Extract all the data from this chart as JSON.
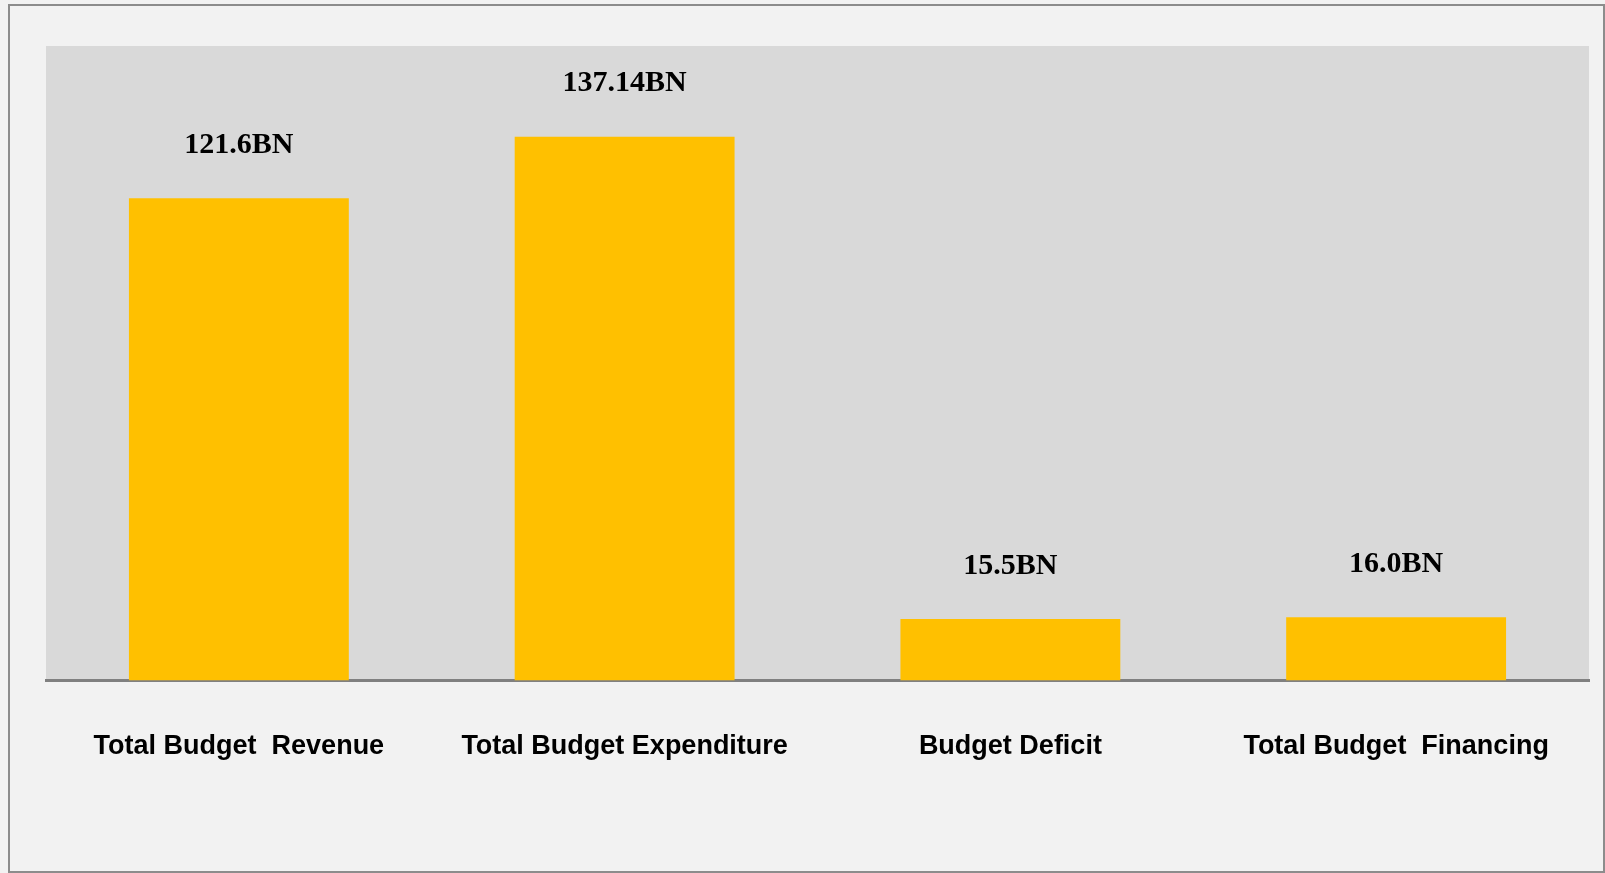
{
  "chart_data": {
    "type": "bar",
    "categories": [
      "Total Budget  Revenue",
      "Total Budget Expenditure",
      "Budget Deficit",
      "Total Budget  Financing"
    ],
    "values": [
      121.6,
      137.14,
      15.5,
      16.0
    ],
    "value_labels": [
      "121.6BN",
      "137.14BN",
      "15.5BN",
      "16.0BN"
    ],
    "color": "#ffc000",
    "grid": false,
    "legend": false
  }
}
